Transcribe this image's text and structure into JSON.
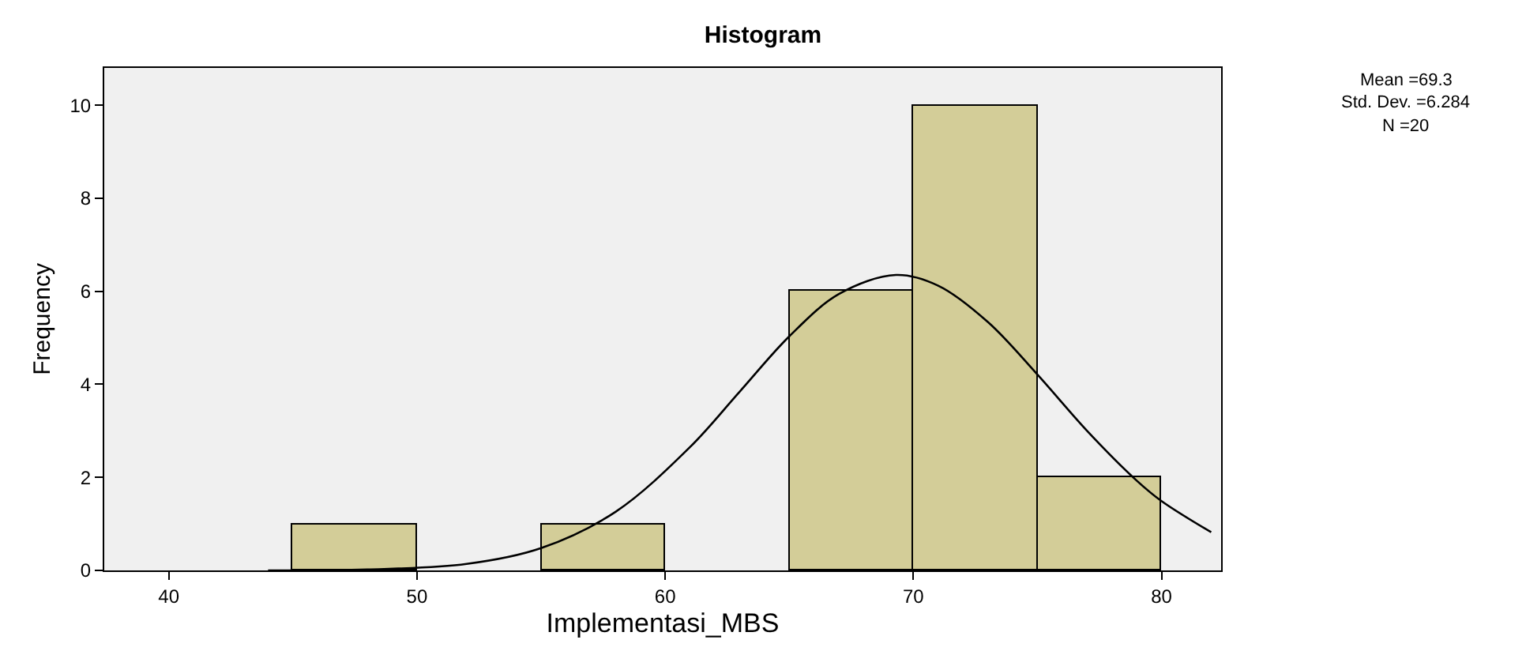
{
  "chart_data": {
    "type": "histogram",
    "title": "Histogram",
    "xlabel": "Implementasi_MBS",
    "ylabel": "Frequency",
    "bins": [
      45,
      50,
      55,
      60,
      65,
      70,
      75,
      80
    ],
    "values": [
      1,
      0,
      1,
      0,
      6,
      10,
      2
    ],
    "color": "#d3cd98",
    "series": [
      {
        "type": "line",
        "color": "#000000",
        "x": [
          44,
          48,
          52,
          55,
          58,
          61,
          63,
          65,
          67,
          69.3,
          71,
          73,
          75,
          77,
          79,
          80,
          82
        ],
        "values": [
          0,
          0.02,
          0.14,
          0.48,
          1.26,
          2.65,
          3.84,
          5.03,
          5.94,
          6.35,
          6.12,
          5.34,
          4.21,
          3.0,
          1.93,
          1.49,
          0.82
        ]
      }
    ],
    "xlim": [
      37.4,
      82.4
    ],
    "xticks": [
      40,
      50,
      60,
      70,
      80
    ],
    "ylim": [
      0,
      10.8
    ],
    "yticks": [
      0,
      2,
      4,
      6,
      8,
      10
    ],
    "grid": false,
    "annotations": [
      "Mean =69.3",
      "Std. Dev. =6.284",
      "N =20"
    ]
  }
}
